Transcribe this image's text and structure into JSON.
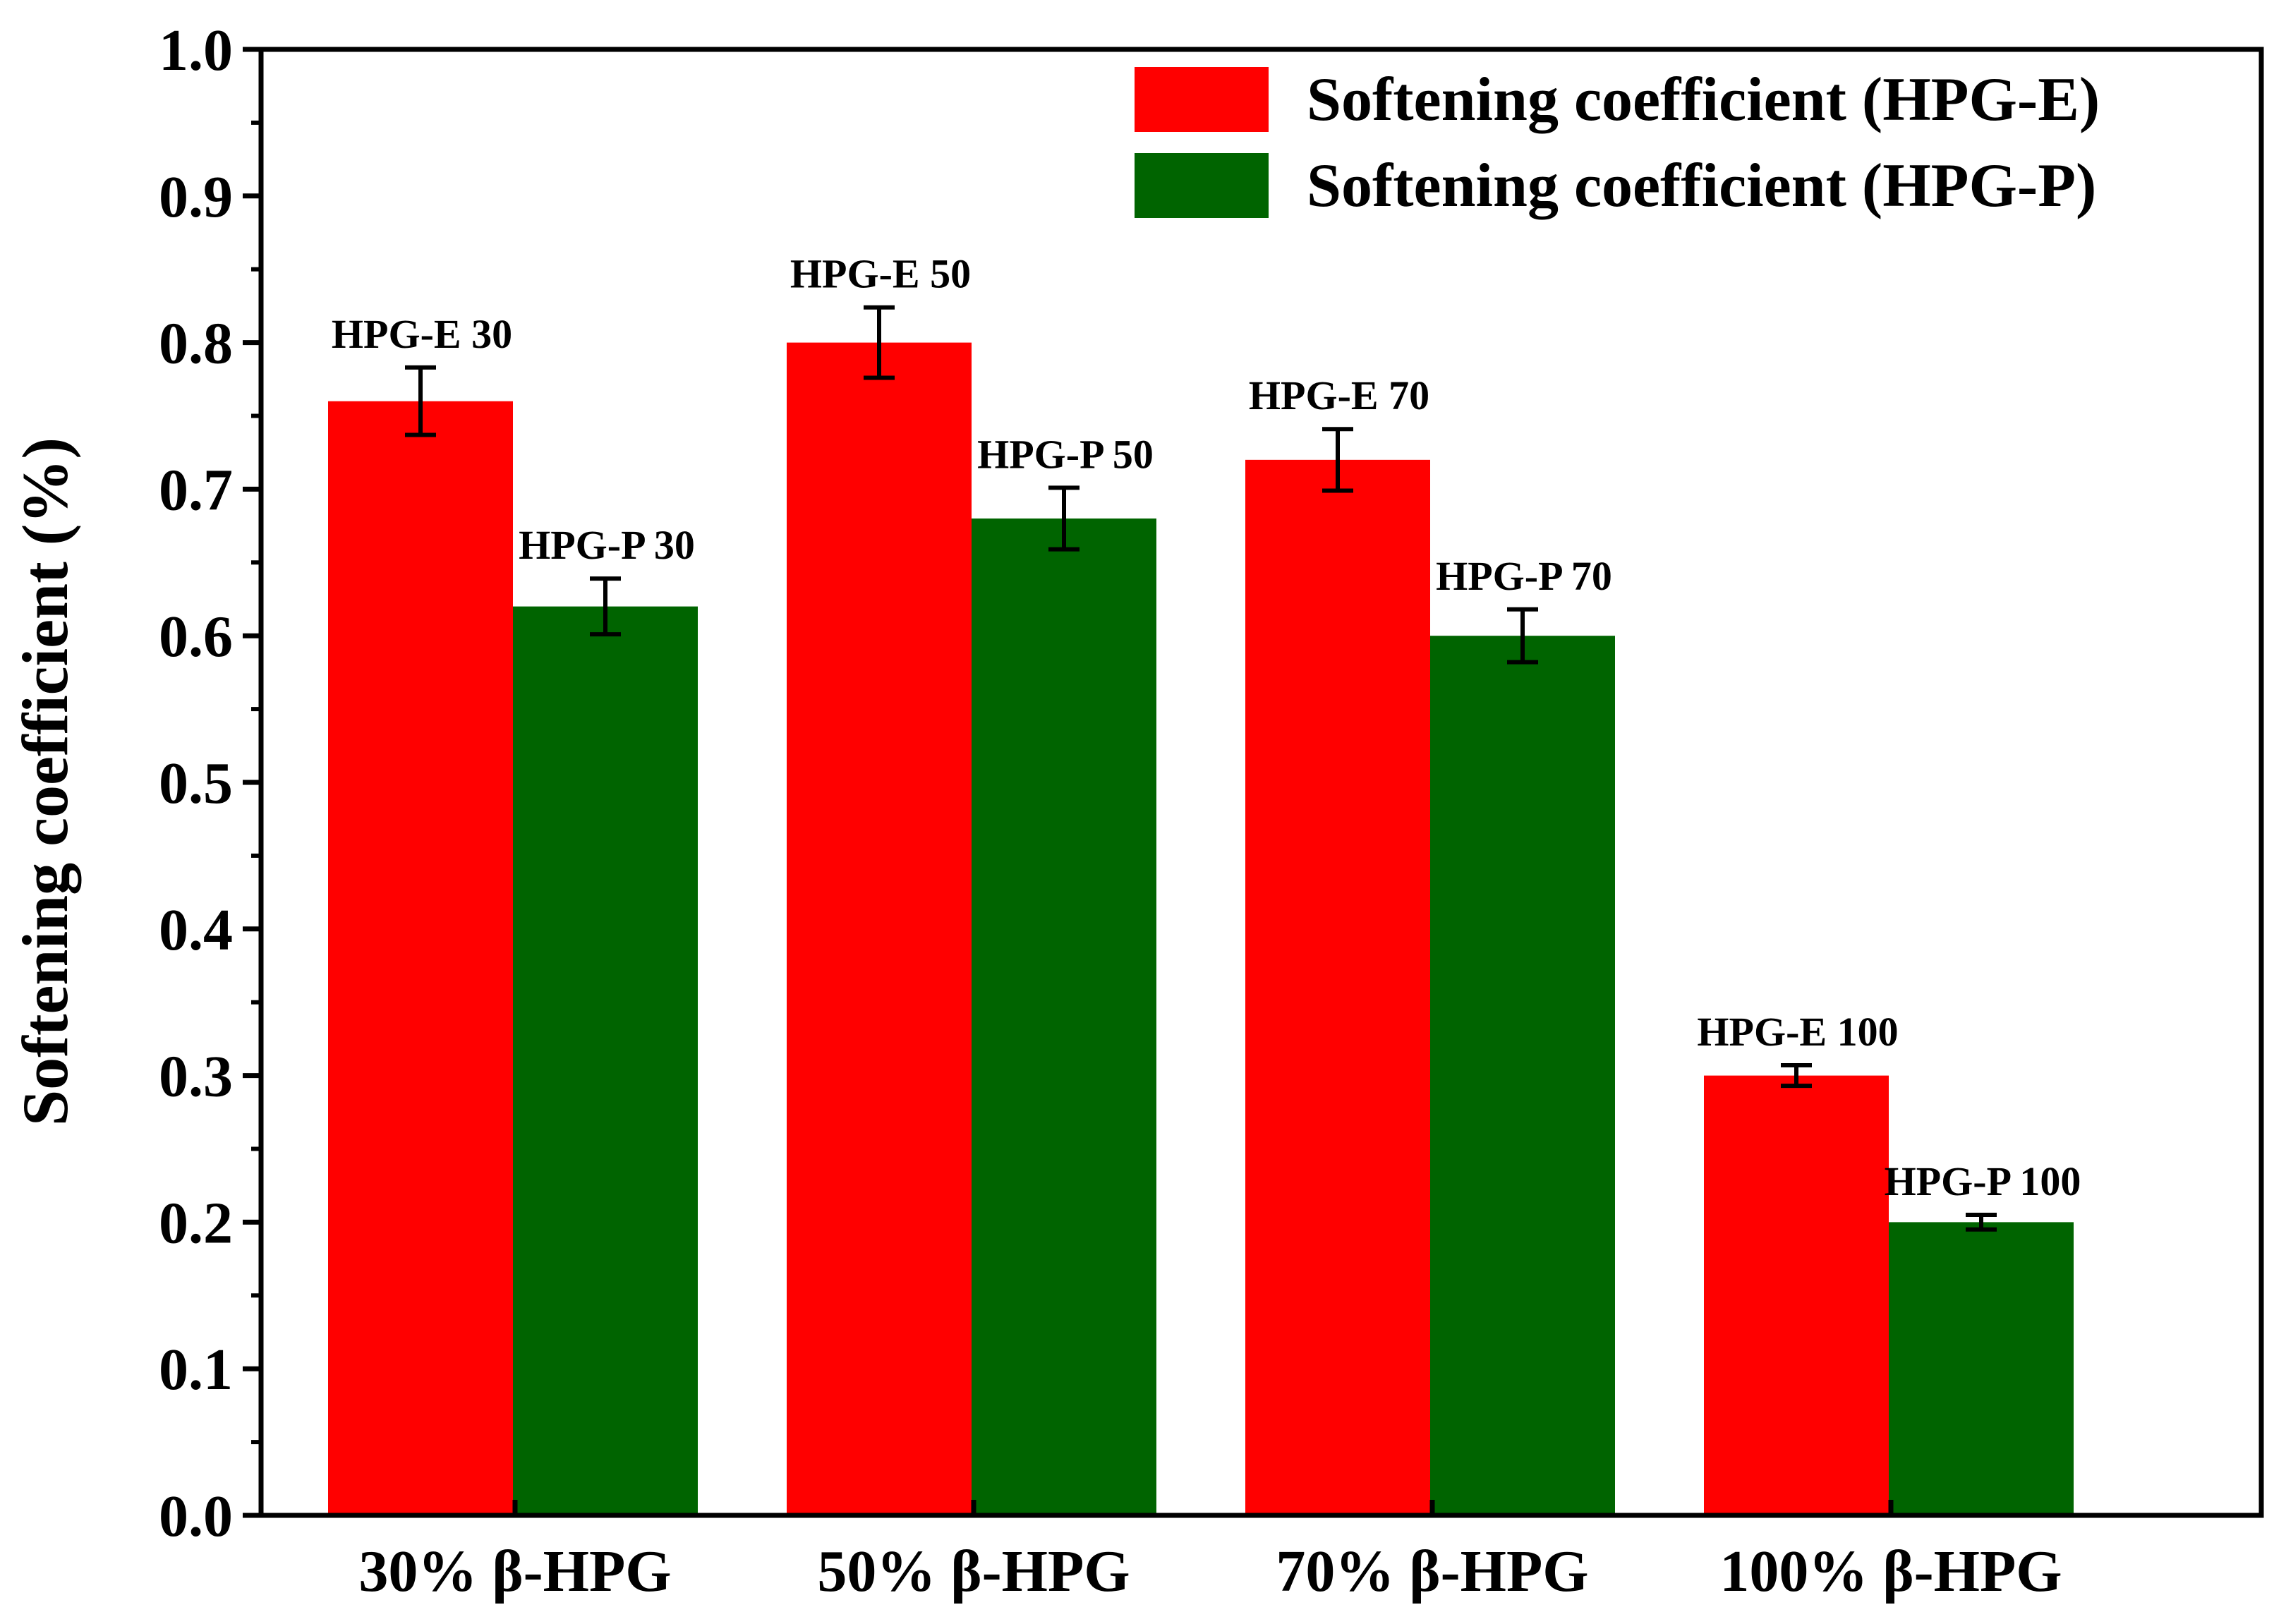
{
  "chart_data": {
    "type": "bar",
    "title": "",
    "xlabel": "",
    "ylabel": "Softening coefficient (%)",
    "ylim": [
      0.0,
      1.0
    ],
    "yticks": [
      "0.0",
      "0.1",
      "0.2",
      "0.3",
      "0.4",
      "0.5",
      "0.6",
      "0.7",
      "0.8",
      "0.9",
      "1.0"
    ],
    "categories": [
      "30% β-HPG",
      "50% β-HPG",
      "70% β-HPG",
      "100% β-HPG"
    ],
    "series": [
      {
        "name": "Softening coefficient (HPG-E)",
        "color": "#ff0000",
        "values": [
          0.76,
          0.8,
          0.72,
          0.3
        ],
        "errors": [
          0.023,
          0.024,
          0.021,
          0.007
        ],
        "labels": [
          "HPG-E 30",
          "HPG-E 50",
          "HPG-E 70",
          "HPG-E 100"
        ]
      },
      {
        "name": "Softening coefficient (HPG-P)",
        "color": "#006400",
        "values": [
          0.62,
          0.68,
          0.6,
          0.2
        ],
        "errors": [
          0.019,
          0.021,
          0.018,
          0.005
        ],
        "labels": [
          "HPG-P 30",
          "HPG-P 50",
          "HPG-P 70",
          "HPG-P 100"
        ]
      }
    ],
    "legend": "top-right",
    "grid": false
  }
}
